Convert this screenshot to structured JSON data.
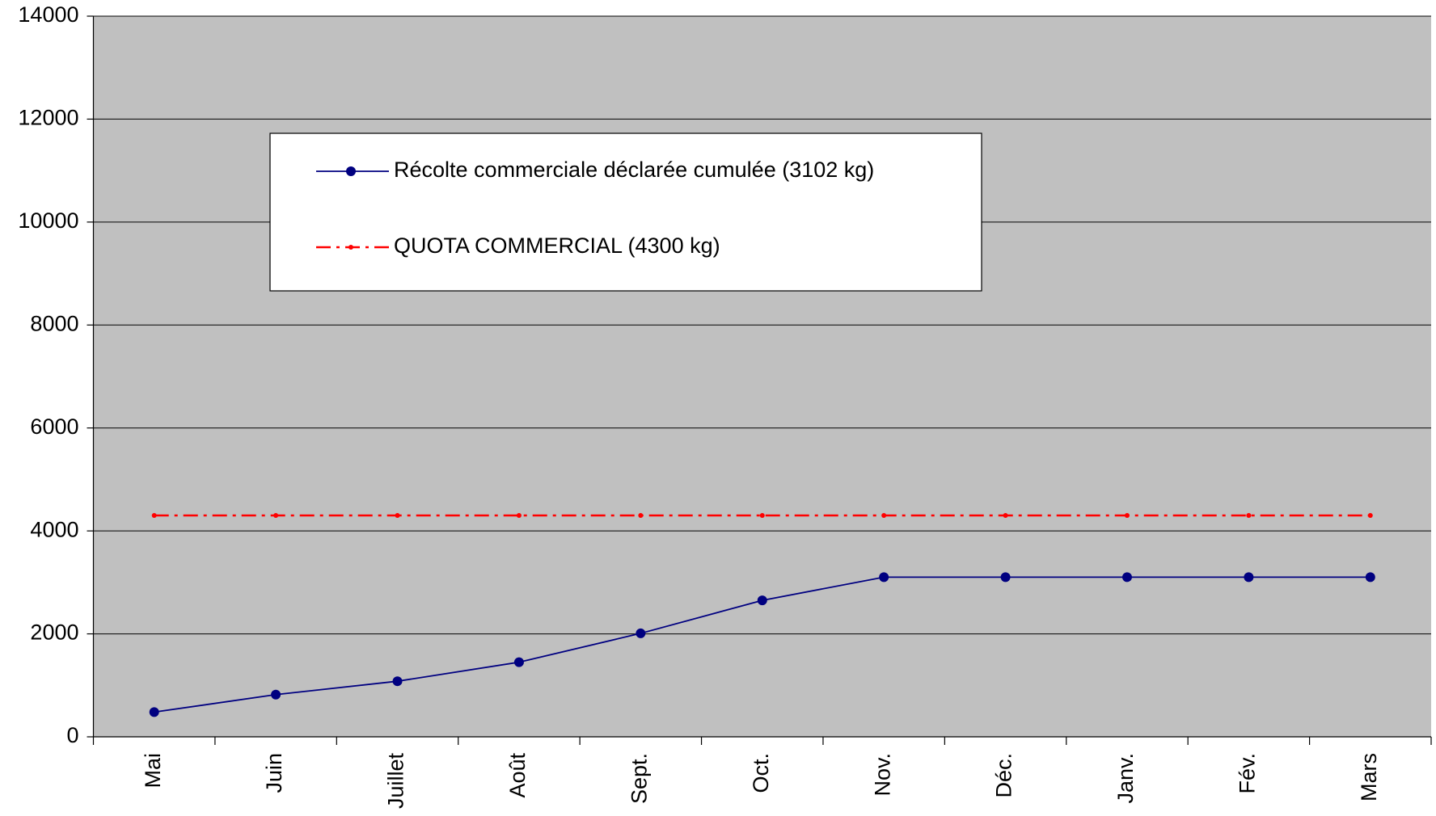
{
  "chart_data": {
    "type": "line",
    "categories": [
      "Mai",
      "Juin",
      "Juillet",
      "Août",
      "Sept.",
      "Oct.",
      "Nov.",
      "Déc.",
      "Janv.",
      "Fév.",
      "Mars"
    ],
    "series": [
      {
        "name": "Récolte commerciale déclarée cumulée (3102 kg)",
        "color": "#000080",
        "dash": "solid",
        "values": [
          480,
          820,
          1080,
          1450,
          2010,
          2650,
          3102,
          3102,
          3102,
          3102,
          3102
        ]
      },
      {
        "name": "QUOTA COMMERCIAL (4300 kg)",
        "color": "#ff0000",
        "dash": "dashdot",
        "values": [
          4300,
          4300,
          4300,
          4300,
          4300,
          4300,
          4300,
          4300,
          4300,
          4300,
          4300
        ]
      }
    ],
    "ylim": [
      0,
      14000
    ],
    "yticks": [
      0,
      2000,
      4000,
      6000,
      8000,
      10000,
      12000,
      14000
    ],
    "grid": true,
    "plot_background": "#c0c0c0"
  }
}
